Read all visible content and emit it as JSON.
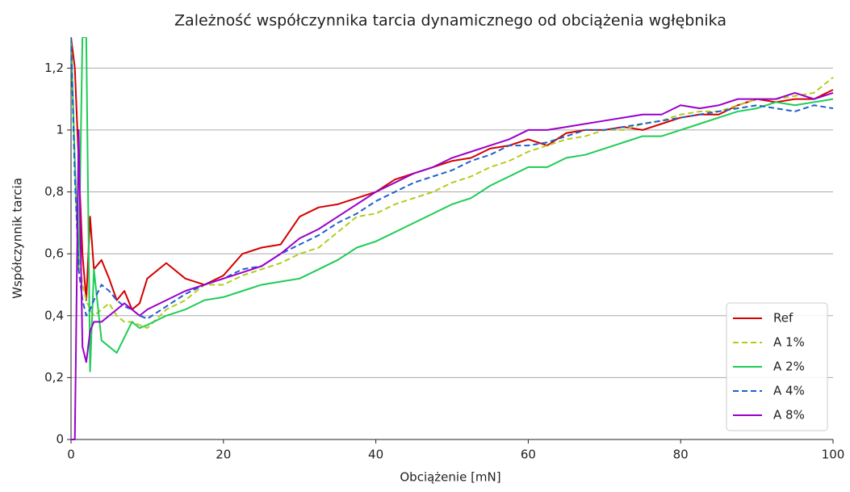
{
  "chart_data": {
    "type": "line",
    "title": "Zależność współczynnika tarcia dynamicznego od obciążenia wgłębnika",
    "x_label": "Obciążenie [mN]",
    "y_label": "Współczynnik tarcia",
    "x": [
      0,
      0.5,
      1,
      1.5,
      2,
      2.5,
      3,
      4,
      5,
      6,
      7,
      8,
      9,
      10,
      12.5,
      15,
      17.5,
      20,
      22.5,
      25,
      27.5,
      30,
      32.5,
      35,
      37.5,
      40,
      42.5,
      45,
      47.5,
      50,
      52.5,
      55,
      57.5,
      60,
      62.5,
      65,
      67.5,
      70,
      72.5,
      75,
      77.5,
      80,
      82.5,
      85,
      87.5,
      90,
      92.5,
      95,
      97.5,
      100
    ],
    "series": [
      {
        "name": "Ref",
        "color": "#d40000",
        "dashed": false,
        "values": [
          1.3,
          1.2,
          0.9,
          0.6,
          0.45,
          0.72,
          0.55,
          0.58,
          0.52,
          0.45,
          0.48,
          0.42,
          0.44,
          0.52,
          0.57,
          0.52,
          0.5,
          0.53,
          0.6,
          0.62,
          0.63,
          0.72,
          0.75,
          0.76,
          0.78,
          0.8,
          0.84,
          0.86,
          0.88,
          0.9,
          0.91,
          0.94,
          0.95,
          0.97,
          0.95,
          0.99,
          1.0,
          1.0,
          1.01,
          1.0,
          1.02,
          1.04,
          1.05,
          1.05,
          1.08,
          1.1,
          1.09,
          1.1,
          1.1,
          1.13
        ]
      },
      {
        "name": "A 1%",
        "color": "#b3cc1a",
        "dashed": true,
        "values": [
          1.3,
          0.85,
          0.6,
          0.5,
          0.45,
          0.42,
          0.4,
          0.42,
          0.44,
          0.4,
          0.38,
          0.38,
          0.37,
          0.36,
          0.42,
          0.45,
          0.5,
          0.5,
          0.53,
          0.55,
          0.57,
          0.6,
          0.62,
          0.67,
          0.72,
          0.73,
          0.76,
          0.78,
          0.8,
          0.83,
          0.85,
          0.88,
          0.9,
          0.93,
          0.95,
          0.97,
          0.98,
          1.0,
          1.0,
          1.02,
          1.03,
          1.05,
          1.06,
          1.06,
          1.08,
          1.1,
          1.1,
          1.11,
          1.12,
          1.17
        ]
      },
      {
        "name": "A 2%",
        "color": "#1ecc55",
        "dashed": false,
        "values": [
          1.3,
          0.9,
          0.55,
          1.3,
          1.3,
          0.22,
          0.55,
          0.32,
          0.3,
          0.28,
          0.33,
          0.38,
          0.36,
          0.37,
          0.4,
          0.42,
          0.45,
          0.46,
          0.48,
          0.5,
          0.51,
          0.52,
          0.55,
          0.58,
          0.62,
          0.64,
          0.67,
          0.7,
          0.73,
          0.76,
          0.78,
          0.82,
          0.85,
          0.88,
          0.88,
          0.91,
          0.92,
          0.94,
          0.96,
          0.98,
          0.98,
          1.0,
          1.02,
          1.04,
          1.06,
          1.07,
          1.09,
          1.08,
          1.09,
          1.1
        ]
      },
      {
        "name": "A 4%",
        "color": "#1f5fcf",
        "dashed": true,
        "values": [
          1.3,
          0.85,
          0.55,
          0.45,
          0.4,
          0.42,
          0.45,
          0.5,
          0.48,
          0.45,
          0.43,
          0.42,
          0.4,
          0.39,
          0.43,
          0.47,
          0.5,
          0.52,
          0.55,
          0.56,
          0.6,
          0.63,
          0.66,
          0.7,
          0.73,
          0.77,
          0.8,
          0.83,
          0.85,
          0.87,
          0.9,
          0.92,
          0.95,
          0.95,
          0.96,
          0.98,
          1.0,
          1.0,
          1.01,
          1.02,
          1.03,
          1.04,
          1.05,
          1.06,
          1.07,
          1.08,
          1.07,
          1.06,
          1.08,
          1.07
        ]
      },
      {
        "name": "A 8%",
        "color": "#9a00cc",
        "dashed": false,
        "values": [
          0,
          0,
          1.0,
          0.3,
          0.25,
          0.35,
          0.38,
          0.38,
          0.4,
          0.42,
          0.44,
          0.42,
          0.4,
          0.42,
          0.45,
          0.48,
          0.5,
          0.52,
          0.54,
          0.56,
          0.6,
          0.65,
          0.68,
          0.72,
          0.76,
          0.8,
          0.83,
          0.86,
          0.88,
          0.91,
          0.93,
          0.95,
          0.97,
          1.0,
          1.0,
          1.01,
          1.02,
          1.03,
          1.04,
          1.05,
          1.05,
          1.08,
          1.07,
          1.08,
          1.1,
          1.1,
          1.1,
          1.12,
          1.1,
          1.12
        ]
      }
    ],
    "xlim": [
      0,
      100
    ],
    "xticks": [
      0,
      20,
      40,
      60,
      80,
      100
    ],
    "ylim": [
      0,
      1.3
    ],
    "yticks": [
      0,
      {
        "value": 0.2,
        "label": "0,2"
      },
      {
        "value": 0.4,
        "label": "0,4"
      },
      {
        "value": 0.6,
        "label": "0,6"
      },
      {
        "value": 0.8,
        "label": "0,8"
      },
      1,
      {
        "value": 1.2,
        "label": "1,2"
      }
    ],
    "grid": true,
    "legend": "lower right"
  }
}
